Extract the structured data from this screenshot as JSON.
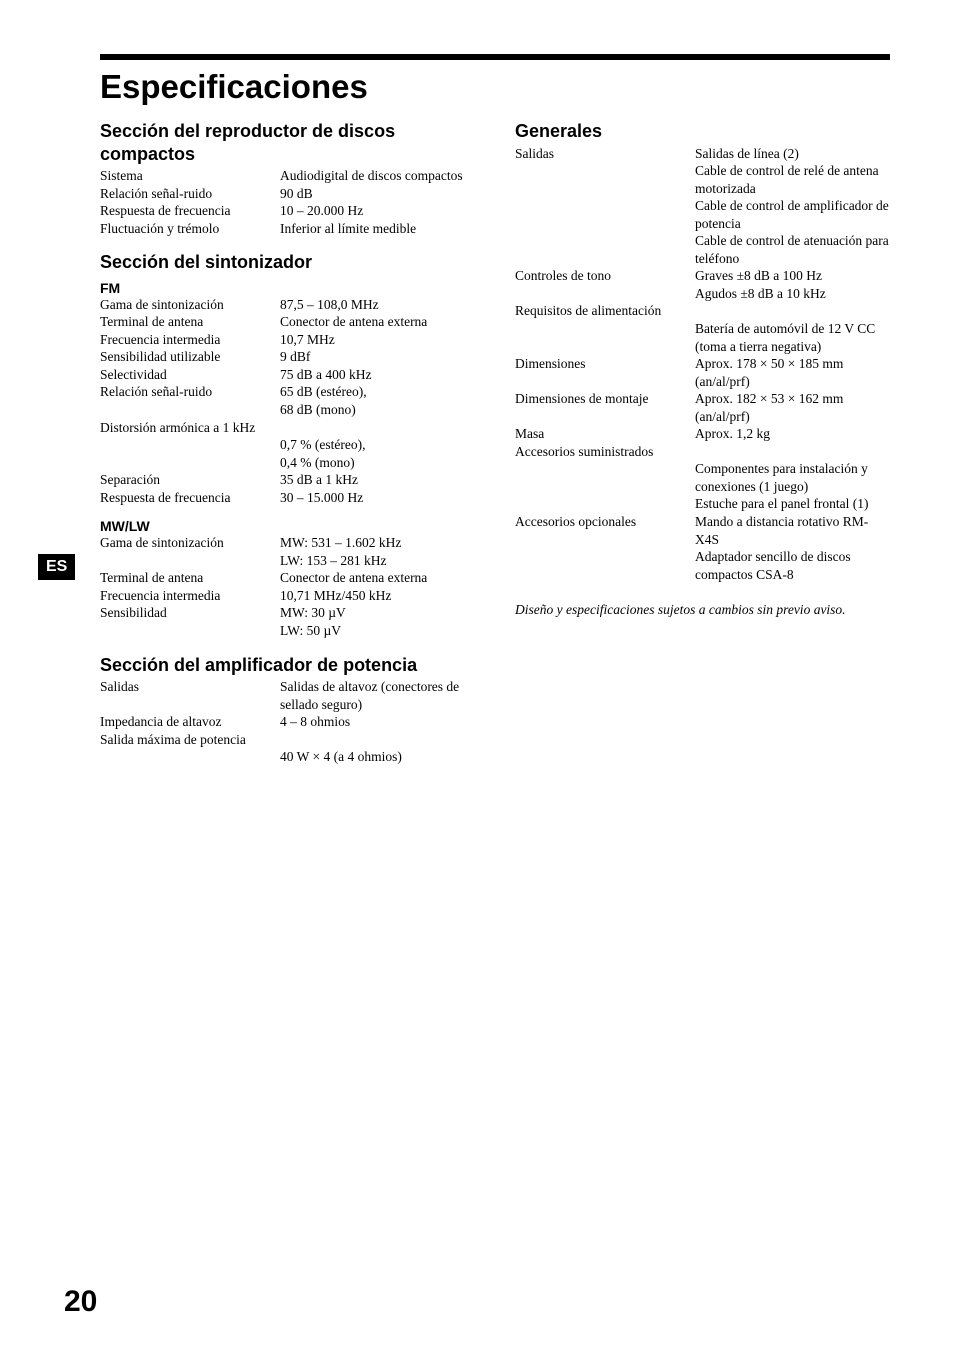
{
  "page": {
    "title": "Especificaciones",
    "side_tag": "ES",
    "number": "20"
  },
  "left": {
    "cd": {
      "heading": "Sección del reproductor de discos compactos",
      "rows": [
        {
          "label": "Sistema",
          "val": "Audiodigital de discos compactos"
        },
        {
          "label": "Relación señal-ruido",
          "val": "90 dB"
        },
        {
          "label": "Respuesta de frecuencia",
          "val": "10 – 20.000 Hz"
        },
        {
          "label": "Fluctuación y trémolo",
          "val": "Inferior al límite medible"
        }
      ]
    },
    "tuner": {
      "heading": "Sección del sintonizador",
      "fm": {
        "sub": "FM",
        "rows1": [
          {
            "label": "Gama de sintonización",
            "val": "87,5 – 108,0 MHz"
          },
          {
            "label": "Terminal de antena",
            "val": "Conector de antena externa"
          },
          {
            "label": "Frecuencia intermedia",
            "val": "10,7 MHz"
          },
          {
            "label": "Sensibilidad utilizable",
            "val": "9 dBf"
          },
          {
            "label": "Selectividad",
            "val": "75 dB a 400 kHz"
          },
          {
            "label": "Relación señal-ruido",
            "val": "65 dB (estéreo),\n68 dB (mono)"
          }
        ],
        "dist_label": "Distorsión armónica a 1 kHz",
        "rows2": [
          {
            "label": "",
            "val": "0,7 % (estéreo),\n0,4 % (mono)"
          },
          {
            "label": "Separación",
            "val": "35 dB a 1 kHz"
          },
          {
            "label": "Respuesta de frecuencia",
            "val": "30 – 15.000 Hz"
          }
        ]
      },
      "mwlw": {
        "sub": "MW/LW",
        "rows": [
          {
            "label": "Gama de sintonización",
            "val": "MW: 531 – 1.602 kHz\nLW: 153 – 281 kHz"
          },
          {
            "label": "Terminal de antena",
            "val": "Conector de antena externa"
          },
          {
            "label": "Frecuencia intermedia",
            "val": "10,71 MHz/450 kHz"
          },
          {
            "label": "Sensibilidad",
            "val": "MW: 30 µV\nLW: 50 µV"
          }
        ]
      }
    },
    "amp": {
      "heading": "Sección del amplificador de potencia",
      "rows1": [
        {
          "label": "Salidas",
          "val": "Salidas de altavoz (conectores de sellado seguro)"
        },
        {
          "label": "Impedancia de altavoz",
          "val": "4 – 8 ohmios"
        }
      ],
      "max_label": "Salida máxima de potencia",
      "rows2": [
        {
          "label": "",
          "val": "40 W × 4 (a 4 ohmios)"
        }
      ]
    }
  },
  "right": {
    "general": {
      "heading": "Generales",
      "rows1": [
        {
          "label": "Salidas",
          "val": "Salidas de línea (2)\nCable de control de relé de antena motorizada\nCable de control de amplificador de potencia\nCable de control de atenuación para teléfono"
        },
        {
          "label": "Controles de tono",
          "val": "Graves ±8 dB a 100 Hz\nAgudos ±8 dB a 10 kHz"
        }
      ],
      "power_label": "Requisitos de alimentación",
      "rows2": [
        {
          "label": "",
          "val": "Batería de automóvil de 12 V CC (toma a tierra negativa)"
        },
        {
          "label": "Dimensiones",
          "val": "Aprox. 178 × 50 × 185 mm (an/al/prf)"
        },
        {
          "label": "Dimensiones de montaje",
          "val": "Aprox. 182 × 53 × 162 mm (an/al/prf)"
        },
        {
          "label": "Masa",
          "val": "Aprox. 1,2 kg"
        }
      ],
      "acc_label": "Accesorios suministrados",
      "rows3": [
        {
          "label": "",
          "val": "Componentes para instalación y conexiones (1 juego)\nEstuche para el panel frontal (1)"
        },
        {
          "label": "Accesorios opcionales",
          "val": "Mando a distancia rotativo RM-X4S\nAdaptador sencillo de discos compactos CSA-8"
        }
      ]
    },
    "note": "Diseño y especificaciones sujetos a cambios sin previo aviso."
  }
}
